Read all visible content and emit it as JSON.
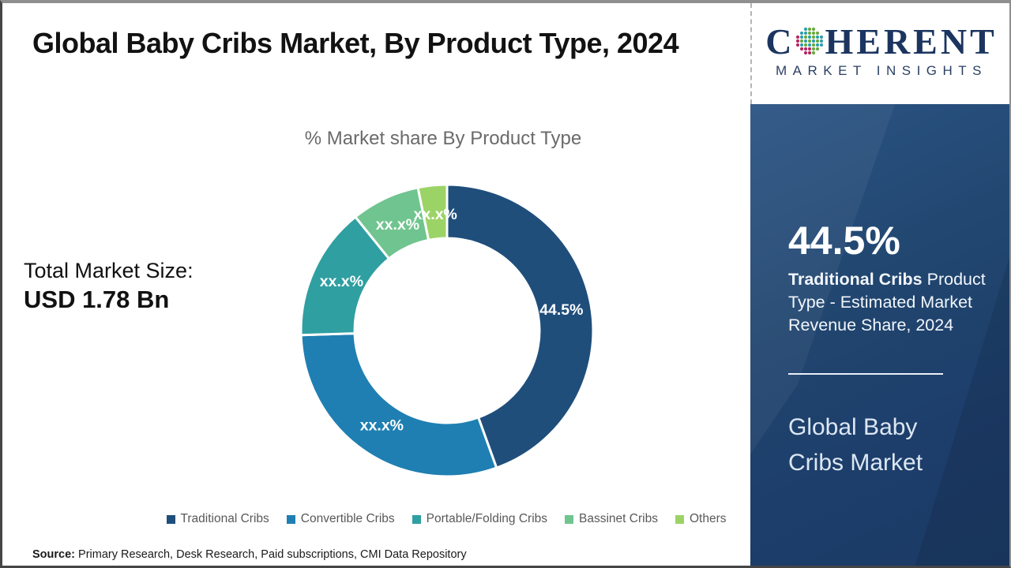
{
  "header": {
    "title": "Global Baby Cribs Market, By Product Type, 2024"
  },
  "logo": {
    "brand_first_letter": "C",
    "brand_rest": "HERENT",
    "subtitle": "MARKET INSIGHTS"
  },
  "chart_data": {
    "type": "pie",
    "donut": true,
    "title": "% Market share By Product Type",
    "categories": [
      "Traditional Cribs",
      "Convertible Cribs",
      "Portable/Folding Cribs",
      "Bassinet Cribs",
      "Others"
    ],
    "values": [
      44.5,
      30.0,
      14.7,
      7.6,
      3.2
    ],
    "labels": [
      "44.5%",
      "xx.x%",
      "xx.x%",
      "xx.x%",
      "xx.x%"
    ],
    "colors": [
      "#1f4e7b",
      "#1f7fb2",
      "#2f9fa1",
      "#70c48f",
      "#9cd367"
    ],
    "legend_position": "bottom",
    "start_angle_deg": 0,
    "inner_radius_ratio": 0.63,
    "values_note": "Only the Traditional Cribs share (44.5%) is shown; other slice values are masked as xx.x% and estimated from arc angles."
  },
  "main": {
    "total_market": {
      "label": "Total Market Size:",
      "value": "USD 1.78 Bn"
    }
  },
  "sidebar": {
    "stat_value": "44.5%",
    "stat_bold": "Traditional Cribs",
    "stat_rest": " Product Type - Estimated Market Revenue Share, 2024",
    "market_name": "Global Baby Cribs Market"
  },
  "source": {
    "label": "Source:",
    "text": " Primary Research, Desk Research, Paid subscriptions, CMI Data Repository"
  }
}
